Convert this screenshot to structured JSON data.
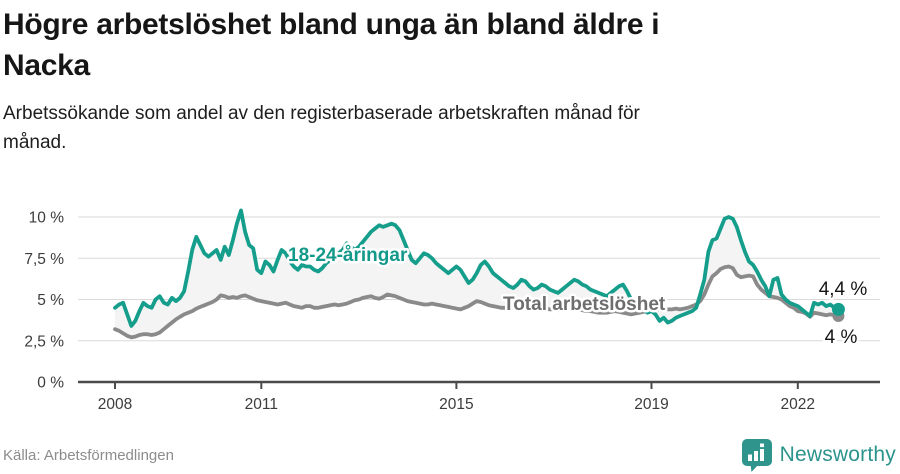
{
  "header": {
    "title_lines": [
      "Högre arbetslöshet bland unga än bland äldre i",
      "Nacka"
    ],
    "subtitle_lines": [
      "Arbetssökande som andel av den registerbaserade arbetskraften månad för",
      "månad."
    ]
  },
  "footer": {
    "source": "Källa: Arbetsförmedlingen",
    "brand": "Newsworthy",
    "brand_color": "#2b948c"
  },
  "chart_data": {
    "type": "line",
    "title": "Högre arbetslöshet bland unga än bland äldre i Nacka",
    "x_unit": "month",
    "x_range": [
      "2008-01",
      "2022-11"
    ],
    "ylim": [
      0,
      10.5
    ],
    "grid": true,
    "legend_position": "inline-labels",
    "x_ticks": [
      {
        "value": 2008,
        "label": "2008"
      },
      {
        "value": 2011,
        "label": "2011"
      },
      {
        "value": 2015,
        "label": "2015"
      },
      {
        "value": 2019,
        "label": "2019"
      },
      {
        "value": 2022,
        "label": "2022"
      }
    ],
    "y_ticks": [
      {
        "value": 0,
        "label": "0 %"
      },
      {
        "value": 2.5,
        "label": "2,5 %"
      },
      {
        "value": 5,
        "label": "5 %"
      },
      {
        "value": 7.5,
        "label": "7,5 %"
      },
      {
        "value": 10,
        "label": "10 %"
      }
    ],
    "style": {
      "grid_color": "#dadada",
      "axis_color": "#4b4b4b",
      "tick_color": "#3c3c3c",
      "band_fill": "#f4f4f4",
      "end_label_color": "#141414"
    },
    "series": [
      {
        "name": "18-24-åringar",
        "color": "#159e8b",
        "label_color": "#13998a",
        "end_label": "4,4 %",
        "values": [
          4.5,
          4.7,
          4.8,
          4.1,
          3.4,
          3.7,
          4.3,
          4.8,
          4.6,
          4.5,
          5.0,
          5.2,
          4.8,
          4.7,
          5.1,
          4.9,
          5.1,
          5.5,
          6.7,
          8.0,
          8.8,
          8.3,
          7.8,
          7.6,
          7.8,
          8.0,
          7.4,
          8.2,
          7.7,
          8.6,
          9.6,
          10.4,
          9.1,
          8.3,
          8.1,
          6.8,
          6.6,
          7.3,
          7.1,
          6.7,
          7.4,
          8.0,
          7.8,
          7.3,
          7.0,
          6.8,
          7.1,
          7.0,
          7.0,
          6.8,
          6.7,
          6.9,
          7.2,
          7.4,
          7.6,
          7.8,
          8.0,
          8.4,
          8.2,
          8.0,
          8.2,
          8.5,
          8.8,
          9.1,
          9.3,
          9.5,
          9.4,
          9.5,
          9.6,
          9.5,
          9.2,
          8.6,
          8.0,
          7.4,
          7.2,
          7.5,
          7.8,
          7.7,
          7.5,
          7.2,
          7.0,
          6.8,
          6.6,
          6.8,
          7.0,
          6.8,
          6.4,
          6.0,
          6.2,
          6.6,
          7.1,
          7.3,
          7.0,
          6.6,
          6.4,
          6.2,
          6.0,
          5.8,
          5.7,
          5.9,
          6.2,
          6.1,
          5.8,
          5.6,
          5.7,
          5.9,
          5.8,
          5.6,
          5.5,
          5.4,
          5.6,
          5.8,
          6.0,
          6.2,
          6.1,
          5.9,
          5.8,
          5.6,
          5.5,
          5.4,
          5.3,
          5.2,
          5.4,
          5.6,
          5.8,
          5.9,
          5.5,
          5.0,
          4.7,
          4.5,
          4.4,
          4.2,
          4.3,
          4.1,
          3.7,
          3.9,
          3.6,
          3.7,
          3.9,
          4.0,
          4.1,
          4.2,
          4.3,
          4.5,
          5.3,
          6.2,
          7.9,
          8.6,
          8.7,
          9.3,
          9.9,
          10.0,
          9.9,
          9.4,
          8.6,
          7.9,
          7.3,
          7.1,
          6.7,
          6.2,
          5.8,
          5.2,
          6.2,
          6.3,
          5.3,
          5.0,
          4.8,
          4.7,
          4.6,
          4.4,
          4.2,
          4.0,
          4.8,
          4.7,
          4.8,
          4.6,
          4.7,
          4.5,
          4.4
        ]
      },
      {
        "name": "Total arbetslöshet",
        "color": "#8a8a8a",
        "label_color": "#6e6e6e",
        "end_label": "4 %",
        "values": [
          3.2,
          3.1,
          2.95,
          2.8,
          2.7,
          2.75,
          2.85,
          2.9,
          2.9,
          2.85,
          2.9,
          3.0,
          3.2,
          3.4,
          3.6,
          3.8,
          3.95,
          4.1,
          4.2,
          4.3,
          4.45,
          4.55,
          4.65,
          4.75,
          4.85,
          5.0,
          5.25,
          5.2,
          5.1,
          5.15,
          5.1,
          5.2,
          5.25,
          5.15,
          5.05,
          4.95,
          4.9,
          4.85,
          4.8,
          4.75,
          4.7,
          4.75,
          4.8,
          4.7,
          4.6,
          4.55,
          4.5,
          4.6,
          4.6,
          4.5,
          4.5,
          4.55,
          4.6,
          4.65,
          4.7,
          4.65,
          4.7,
          4.75,
          4.85,
          4.95,
          5.0,
          5.1,
          5.15,
          5.2,
          5.1,
          5.05,
          5.15,
          5.3,
          5.25,
          5.2,
          5.1,
          5.0,
          4.9,
          4.85,
          4.8,
          4.75,
          4.7,
          4.7,
          4.75,
          4.7,
          4.65,
          4.6,
          4.55,
          4.5,
          4.45,
          4.4,
          4.5,
          4.6,
          4.75,
          4.9,
          4.85,
          4.75,
          4.65,
          4.6,
          4.55,
          4.5,
          4.5,
          4.45,
          4.5,
          4.55,
          4.5,
          4.45,
          4.4,
          4.4,
          4.45,
          4.5,
          4.45,
          4.4,
          4.4,
          4.35,
          4.4,
          4.45,
          4.5,
          4.45,
          4.4,
          4.35,
          4.3,
          4.3,
          4.25,
          4.2,
          4.2,
          4.2,
          4.25,
          4.3,
          4.25,
          4.2,
          4.15,
          4.1,
          4.15,
          4.2,
          4.25,
          4.3,
          4.35,
          4.4,
          4.4,
          4.45,
          4.4,
          4.4,
          4.45,
          4.4,
          4.45,
          4.5,
          4.6,
          4.7,
          4.9,
          5.3,
          5.9,
          6.4,
          6.6,
          6.85,
          6.95,
          7.0,
          6.9,
          6.5,
          6.35,
          6.4,
          6.45,
          6.4,
          5.9,
          5.6,
          5.4,
          5.2,
          5.15,
          5.1,
          5.0,
          4.8,
          4.6,
          4.5,
          4.3,
          4.25,
          4.15,
          3.95,
          4.2,
          4.15,
          4.1,
          4.05,
          4.1,
          4.05,
          4.0
        ]
      }
    ]
  }
}
